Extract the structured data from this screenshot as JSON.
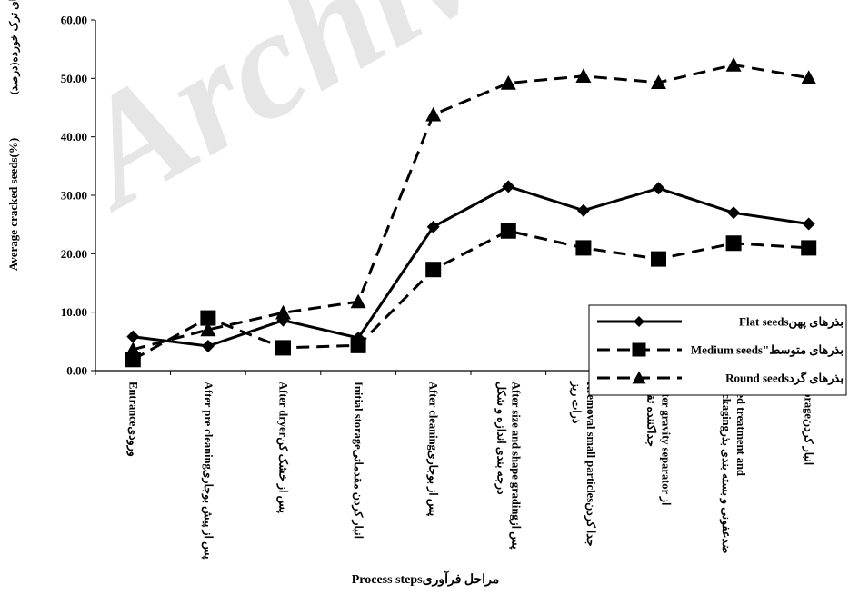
{
  "chart_data": {
    "type": "line",
    "watermark": "Archive",
    "xlabel": "Process stepsمراحل فرآوری",
    "ylabel": "Average cracked seeds(%)",
    "ylabel_fa": "بذرهای ترک خورده(درصد)",
    "yticks": [
      "0.00",
      "10.00",
      "20.00",
      "30.00",
      "40.00",
      "50.00",
      "60.00"
    ],
    "ylim": [
      0,
      60
    ],
    "grid": false,
    "legend_position": "right",
    "categories": [
      [
        "Entranceورودی"
      ],
      [
        "After pre cleaningپس از پیش بوجاری"
      ],
      [
        "After dryerپس از خشک کن"
      ],
      [
        "Initial storageانبار کردن مقدماتی"
      ],
      [
        "After cleaningپس از بوجاری"
      ],
      [
        "After size and shape gradingپس از",
        "درجه بندی اندازه و شکل"
      ],
      [
        "Rremoval small particlesجدا کردن",
        "ذرات ریز"
      ],
      [
        "After gravity separator از",
        "جداکننده ثقلی"
      ],
      [
        "Seed treatment and",
        "packagingضدعفونی و بسته بندی بذر"
      ],
      [
        "Storageانبار کردن"
      ]
    ],
    "series": [
      {
        "name": "Flat seedsبذرهای پهن",
        "marker": "diamond",
        "dash": "solid",
        "values": [
          5.8,
          4.2,
          8.6,
          5.6,
          24.6,
          31.5,
          27.4,
          31.2,
          27.0,
          25.1
        ]
      },
      {
        "name": "Medium seeds\"بذرهای متوسط",
        "marker": "square",
        "dash": "dashed",
        "values": [
          1.9,
          9.0,
          3.9,
          4.3,
          17.3,
          23.9,
          21.0,
          19.1,
          21.8,
          21.0
        ]
      },
      {
        "name": "Round seedsبذرهای گرد",
        "marker": "triangle",
        "dash": "dashed",
        "values": [
          3.6,
          7.0,
          9.9,
          11.8,
          43.8,
          49.2,
          50.4,
          49.3,
          52.3,
          50.1
        ]
      }
    ]
  }
}
